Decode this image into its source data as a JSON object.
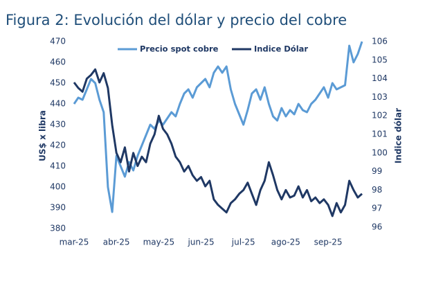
{
  "chart_data": {
    "type": "line",
    "title": "Figura 2: Evolución del dólar y precio del cobre",
    "y_label": "US$ x libra",
    "y2_label": "Indice dólar",
    "categories": [
      "mar-25",
      null,
      null,
      null,
      null,
      null,
      null,
      null,
      null,
      null,
      "abr-25",
      null,
      null,
      null,
      null,
      null,
      null,
      null,
      null,
      null,
      "may-25",
      null,
      null,
      null,
      null,
      null,
      null,
      null,
      null,
      null,
      "jun-25",
      null,
      null,
      null,
      null,
      null,
      null,
      null,
      null,
      null,
      "jul-25",
      null,
      null,
      null,
      null,
      null,
      null,
      null,
      null,
      null,
      "ago-25",
      null,
      null,
      null,
      null,
      null,
      null,
      null,
      null,
      null,
      "sep-25",
      null,
      null,
      null,
      null,
      null,
      null,
      null,
      null
    ],
    "series": [
      {
        "name": "Precio spot cobre",
        "color": "#5b9bd5",
        "axis": "y",
        "values": [
          440,
          443,
          442,
          447,
          452,
          450,
          442,
          436,
          400,
          388,
          415,
          410,
          405,
          412,
          408,
          415,
          420,
          425,
          430,
          428,
          432,
          430,
          433,
          436,
          434,
          440,
          445,
          447,
          443,
          448,
          450,
          452,
          448,
          455,
          458,
          455,
          458,
          447,
          440,
          435,
          430,
          437,
          445,
          447,
          442,
          448,
          440,
          434,
          432,
          438,
          434,
          437,
          435,
          440,
          437,
          436,
          440,
          442,
          445,
          448,
          443,
          450,
          447,
          448,
          449,
          468,
          460,
          464,
          470
        ]
      },
      {
        "name": "Indice Dólar",
        "color": "#1f3864",
        "axis": "y2",
        "values": [
          103.8,
          103.5,
          103.3,
          104,
          104.2,
          104.5,
          103.8,
          104.3,
          103.5,
          101.5,
          100,
          99.5,
          100.3,
          99,
          100,
          99.3,
          99.8,
          99.5,
          100.5,
          101,
          102,
          101.3,
          101,
          100.5,
          99.8,
          99.5,
          99,
          99.3,
          98.8,
          98.5,
          98.7,
          98.2,
          98.5,
          97.5,
          97.2,
          97,
          96.8,
          97.3,
          97.5,
          97.8,
          98,
          98.4,
          97.8,
          97.2,
          98,
          98.5,
          99.5,
          98.8,
          98,
          97.5,
          98,
          97.6,
          97.7,
          98.2,
          97.6,
          98,
          97.4,
          97.6,
          97.3,
          97.5,
          97.2,
          96.6,
          97.3,
          96.8,
          97.2,
          98.5,
          98,
          97.6,
          97.8
        ]
      }
    ],
    "ylim": [
      380,
      470
    ],
    "yticks": [
      380,
      390,
      400,
      410,
      420,
      430,
      440,
      450,
      460,
      470
    ],
    "y2lim": [
      96,
      106
    ],
    "y2ticks": [
      96,
      97,
      98,
      99,
      100,
      101,
      102,
      103,
      104,
      105,
      106
    ],
    "legend": "top",
    "grid": false
  }
}
